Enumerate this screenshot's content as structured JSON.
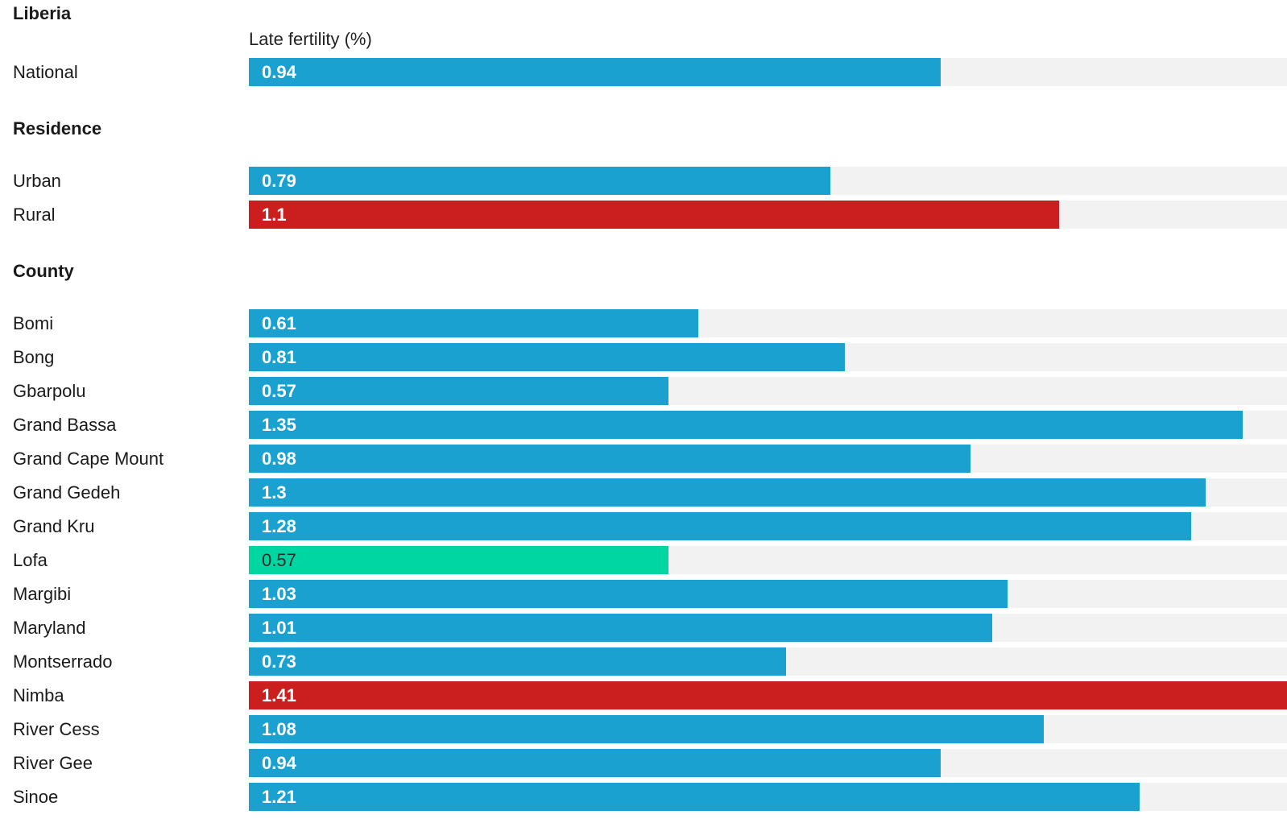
{
  "chart_data": {
    "type": "bar",
    "title": "Liberia",
    "metric_label": "Late fertility (%)",
    "xlim": [
      0,
      1.41
    ],
    "colors": {
      "default": "#1aa1cf",
      "high": "#cb1f1f",
      "low": "#00d6a2",
      "track": "#f2f2f2"
    },
    "groups": [
      {
        "heading": "",
        "rows": [
          {
            "label": "National",
            "value": 0.94,
            "display": "0.94",
            "color": "default"
          }
        ]
      },
      {
        "heading": "Residence",
        "rows": [
          {
            "label": "Urban",
            "value": 0.79,
            "display": "0.79",
            "color": "default"
          },
          {
            "label": "Rural",
            "value": 1.1,
            "display": "1.1",
            "color": "high"
          }
        ]
      },
      {
        "heading": "County",
        "rows": [
          {
            "label": "Bomi",
            "value": 0.61,
            "display": "0.61",
            "color": "default"
          },
          {
            "label": "Bong",
            "value": 0.81,
            "display": "0.81",
            "color": "default"
          },
          {
            "label": "Gbarpolu",
            "value": 0.57,
            "display": "0.57",
            "color": "default"
          },
          {
            "label": "Grand Bassa",
            "value": 1.35,
            "display": "1.35",
            "color": "default"
          },
          {
            "label": "Grand Cape Mount",
            "value": 0.98,
            "display": "0.98",
            "color": "default"
          },
          {
            "label": "Grand Gedeh",
            "value": 1.3,
            "display": "1.3",
            "color": "default"
          },
          {
            "label": "Grand Kru",
            "value": 1.28,
            "display": "1.28",
            "color": "default"
          },
          {
            "label": "Lofa",
            "value": 0.57,
            "display": "0.57",
            "color": "low"
          },
          {
            "label": "Margibi",
            "value": 1.03,
            "display": "1.03",
            "color": "default"
          },
          {
            "label": "Maryland",
            "value": 1.01,
            "display": "1.01",
            "color": "default"
          },
          {
            "label": "Montserrado",
            "value": 0.73,
            "display": "0.73",
            "color": "default"
          },
          {
            "label": "Nimba",
            "value": 1.41,
            "display": "1.41",
            "color": "high"
          },
          {
            "label": "River Cess",
            "value": 1.08,
            "display": "1.08",
            "color": "default"
          },
          {
            "label": "River Gee",
            "value": 0.94,
            "display": "0.94",
            "color": "default"
          },
          {
            "label": "Sinoe",
            "value": 1.21,
            "display": "1.21",
            "color": "default"
          }
        ]
      }
    ]
  }
}
